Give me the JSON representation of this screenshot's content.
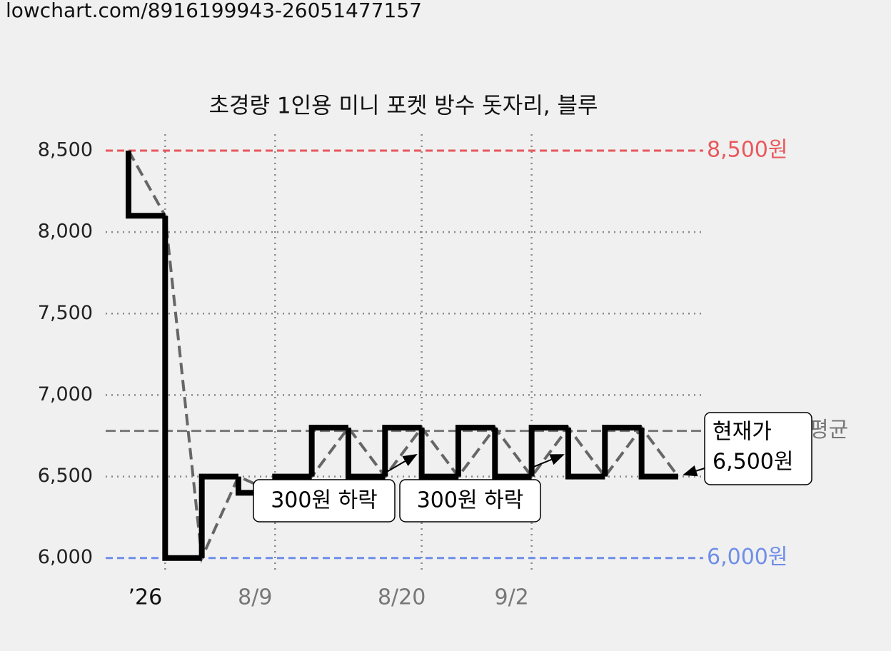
{
  "header": {
    "url": "lowchart.com/8916199943-26051477157"
  },
  "chart_data": {
    "type": "line",
    "step": "before",
    "title": "초경량 1인용 미니 포켓 방수 돗자리, 블루",
    "categories": [
      null,
      "’26",
      null,
      null,
      "8/9",
      null,
      null,
      null,
      "8/20",
      null,
      null,
      "9/2",
      null,
      null,
      null,
      null
    ],
    "values": [
      8500,
      8100,
      6000,
      6500,
      6400,
      6500,
      6800,
      6500,
      6800,
      6500,
      6800,
      6500,
      6800,
      6500,
      6800,
      6500
    ],
    "color": "#000000",
    "connector_color": "#666666",
    "ylim": [
      5920,
      8570
    ],
    "yticks": [
      {
        "value": 6000,
        "label": "6,000"
      },
      {
        "value": 6500,
        "label": "6,500"
      },
      {
        "value": 7000,
        "label": "7,000"
      },
      {
        "value": 7500,
        "label": "7,500"
      },
      {
        "value": 8000,
        "label": "8,000"
      },
      {
        "value": 8500,
        "label": "8,500"
      }
    ],
    "grid": true,
    "reference_lines": [
      {
        "value": 8500,
        "label": "8,500원",
        "color": "#e8585c"
      },
      {
        "value": 6000,
        "label": "6,000원",
        "color": "#6f8ee8"
      },
      {
        "value": 6780,
        "label": "평균",
        "color": "#777777"
      }
    ],
    "annotations": [
      {
        "text": "300원 하락"
      },
      {
        "text": "300원 하락"
      }
    ],
    "current": {
      "lines": [
        "현재가",
        "6,500원"
      ]
    }
  }
}
